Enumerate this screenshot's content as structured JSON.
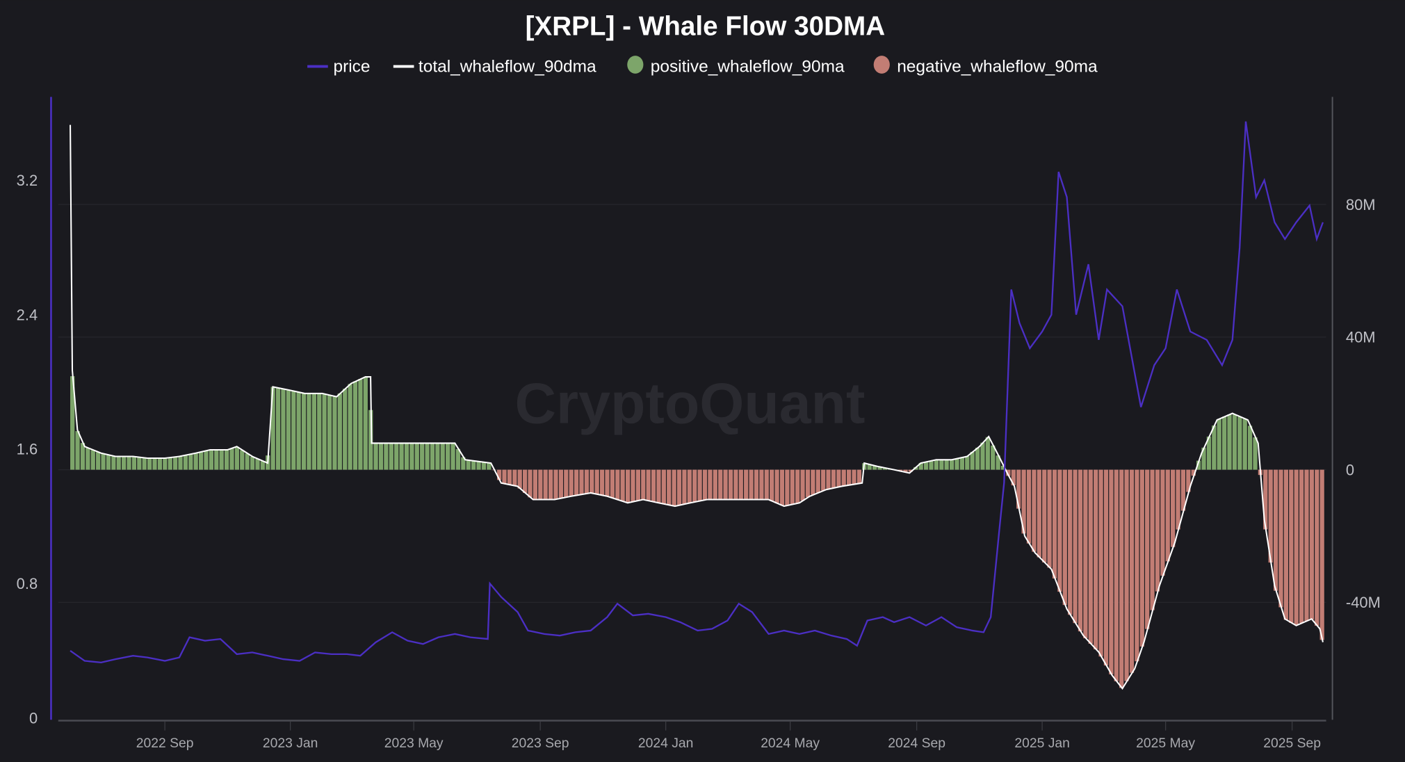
{
  "chart_data": {
    "type": "bar+line",
    "title": "[XRPL] - Whale Flow 30DMA",
    "watermark": "CryptoQuant",
    "legend_position": "top-center",
    "grid": true,
    "colors": {
      "background": "#1a1a1f",
      "price": "#4b2fc4",
      "total": "#ffffff",
      "positive": "#7da56a",
      "negative": "#c27d74"
    },
    "legend": [
      {
        "name": "price",
        "marker": "line",
        "color": "#4b2fc4"
      },
      {
        "name": "total_whaleflow_90dma",
        "marker": "line",
        "color": "#ffffff"
      },
      {
        "name": "positive_whaleflow_90ma",
        "marker": "circle",
        "color": "#7da56a"
      },
      {
        "name": "negative_whaleflow_90ma",
        "marker": "circle",
        "color": "#c27d74"
      }
    ],
    "x_ticks": [
      "2022 Sep",
      "2023 Jan",
      "2023 May",
      "2023 Sep",
      "2024 Jan",
      "2024 May",
      "2024 Sep",
      "2025 Jan",
      "2025 May",
      "2025 Sep"
    ],
    "x_tick_dates": [
      "2022-09-01",
      "2023-01-01",
      "2023-05-01",
      "2023-09-01",
      "2024-01-01",
      "2024-05-01",
      "2024-09-01",
      "2025-01-01",
      "2025-05-01",
      "2025-09-01"
    ],
    "xlim": [
      "2022-06-01",
      "2025-10-01"
    ],
    "y_left": {
      "ticks": [
        "0",
        "0.8",
        "1.6",
        "2.4",
        "3.2"
      ],
      "values": [
        0,
        0.8,
        1.6,
        2.4,
        3.2
      ],
      "ylim": [
        0,
        3.7
      ]
    },
    "y_right": {
      "ticks": [
        "-40M",
        "0",
        "40M",
        "80M"
      ],
      "values": [
        -40,
        0,
        40,
        80
      ],
      "unit": "M",
      "ylim": [
        -75,
        107
      ]
    },
    "price": [
      [
        "2022-06-01",
        0.4
      ],
      [
        "2022-06-15",
        0.34
      ],
      [
        "2022-07-01",
        0.33
      ],
      [
        "2022-07-15",
        0.35
      ],
      [
        "2022-08-01",
        0.37
      ],
      [
        "2022-08-15",
        0.36
      ],
      [
        "2022-09-01",
        0.34
      ],
      [
        "2022-09-15",
        0.36
      ],
      [
        "2022-09-25",
        0.48
      ],
      [
        "2022-10-10",
        0.46
      ],
      [
        "2022-10-25",
        0.47
      ],
      [
        "2022-11-10",
        0.38
      ],
      [
        "2022-11-25",
        0.39
      ],
      [
        "2022-12-10",
        0.37
      ],
      [
        "2022-12-25",
        0.35
      ],
      [
        "2023-01-10",
        0.34
      ],
      [
        "2023-01-25",
        0.39
      ],
      [
        "2023-02-10",
        0.38
      ],
      [
        "2023-02-25",
        0.38
      ],
      [
        "2023-03-10",
        0.37
      ],
      [
        "2023-03-25",
        0.45
      ],
      [
        "2023-04-10",
        0.51
      ],
      [
        "2023-04-25",
        0.46
      ],
      [
        "2023-05-10",
        0.44
      ],
      [
        "2023-05-25",
        0.48
      ],
      [
        "2023-06-10",
        0.5
      ],
      [
        "2023-06-25",
        0.48
      ],
      [
        "2023-07-12",
        0.47
      ],
      [
        "2023-07-14",
        0.8
      ],
      [
        "2023-07-25",
        0.72
      ],
      [
        "2023-08-10",
        0.63
      ],
      [
        "2023-08-20",
        0.52
      ],
      [
        "2023-09-05",
        0.5
      ],
      [
        "2023-09-20",
        0.49
      ],
      [
        "2023-10-05",
        0.51
      ],
      [
        "2023-10-20",
        0.52
      ],
      [
        "2023-11-05",
        0.6
      ],
      [
        "2023-11-15",
        0.68
      ],
      [
        "2023-11-30",
        0.61
      ],
      [
        "2023-12-15",
        0.62
      ],
      [
        "2024-01-01",
        0.6
      ],
      [
        "2024-01-15",
        0.57
      ],
      [
        "2024-02-01",
        0.52
      ],
      [
        "2024-02-15",
        0.53
      ],
      [
        "2024-03-01",
        0.58
      ],
      [
        "2024-03-12",
        0.68
      ],
      [
        "2024-03-25",
        0.63
      ],
      [
        "2024-04-10",
        0.5
      ],
      [
        "2024-04-25",
        0.52
      ],
      [
        "2024-05-10",
        0.5
      ],
      [
        "2024-05-25",
        0.52
      ],
      [
        "2024-06-10",
        0.49
      ],
      [
        "2024-06-25",
        0.47
      ],
      [
        "2024-07-05",
        0.43
      ],
      [
        "2024-07-15",
        0.58
      ],
      [
        "2024-07-30",
        0.6
      ],
      [
        "2024-08-10",
        0.57
      ],
      [
        "2024-08-25",
        0.6
      ],
      [
        "2024-09-10",
        0.55
      ],
      [
        "2024-09-25",
        0.6
      ],
      [
        "2024-10-10",
        0.54
      ],
      [
        "2024-10-25",
        0.52
      ],
      [
        "2024-11-05",
        0.51
      ],
      [
        "2024-11-12",
        0.6
      ],
      [
        "2024-11-20",
        1.1
      ],
      [
        "2024-11-25",
        1.4
      ],
      [
        "2024-12-02",
        2.55
      ],
      [
        "2024-12-10",
        2.35
      ],
      [
        "2024-12-20",
        2.2
      ],
      [
        "2025-01-01",
        2.3
      ],
      [
        "2025-01-10",
        2.4
      ],
      [
        "2025-01-17",
        3.25
      ],
      [
        "2025-01-25",
        3.1
      ],
      [
        "2025-02-03",
        2.4
      ],
      [
        "2025-02-15",
        2.7
      ],
      [
        "2025-02-25",
        2.25
      ],
      [
        "2025-03-05",
        2.55
      ],
      [
        "2025-03-20",
        2.45
      ],
      [
        "2025-04-07",
        1.85
      ],
      [
        "2025-04-20",
        2.1
      ],
      [
        "2025-05-01",
        2.2
      ],
      [
        "2025-05-12",
        2.55
      ],
      [
        "2025-05-25",
        2.3
      ],
      [
        "2025-06-10",
        2.25
      ],
      [
        "2025-06-25",
        2.1
      ],
      [
        "2025-07-05",
        2.25
      ],
      [
        "2025-07-12",
        2.8
      ],
      [
        "2025-07-18",
        3.55
      ],
      [
        "2025-07-28",
        3.1
      ],
      [
        "2025-08-05",
        3.2
      ],
      [
        "2025-08-15",
        2.95
      ],
      [
        "2025-08-25",
        2.85
      ],
      [
        "2025-09-05",
        2.95
      ],
      [
        "2025-09-18",
        3.05
      ],
      [
        "2025-09-25",
        2.85
      ],
      [
        "2025-10-01",
        2.95
      ]
    ],
    "total_whaleflow_90dma_M": [
      [
        "2022-06-01",
        104
      ],
      [
        "2022-06-03",
        30
      ],
      [
        "2022-06-08",
        12
      ],
      [
        "2022-06-15",
        7
      ],
      [
        "2022-07-01",
        5
      ],
      [
        "2022-07-15",
        4
      ],
      [
        "2022-08-01",
        4
      ],
      [
        "2022-08-15",
        3.5
      ],
      [
        "2022-09-01",
        3.5
      ],
      [
        "2022-09-15",
        4
      ],
      [
        "2022-10-01",
        5
      ],
      [
        "2022-10-15",
        6
      ],
      [
        "2022-11-01",
        6
      ],
      [
        "2022-11-10",
        7
      ],
      [
        "2022-11-25",
        4
      ],
      [
        "2022-12-10",
        2
      ],
      [
        "2022-12-15",
        25
      ],
      [
        "2022-12-31",
        24
      ],
      [
        "2023-01-15",
        23
      ],
      [
        "2023-02-01",
        23
      ],
      [
        "2023-02-15",
        22
      ],
      [
        "2023-03-01",
        26
      ],
      [
        "2023-03-15",
        28
      ],
      [
        "2023-03-20",
        28
      ],
      [
        "2023-03-21",
        8
      ],
      [
        "2023-04-10",
        8
      ],
      [
        "2023-05-01",
        8
      ],
      [
        "2023-05-20",
        8
      ],
      [
        "2023-06-10",
        8
      ],
      [
        "2023-06-20",
        3
      ],
      [
        "2023-07-15",
        2
      ],
      [
        "2023-07-25",
        -4
      ],
      [
        "2023-08-10",
        -5
      ],
      [
        "2023-08-25",
        -9
      ],
      [
        "2023-09-15",
        -9
      ],
      [
        "2023-10-01",
        -8
      ],
      [
        "2023-10-20",
        -7
      ],
      [
        "2023-11-05",
        -8
      ],
      [
        "2023-11-25",
        -10
      ],
      [
        "2023-12-10",
        -9
      ],
      [
        "2023-12-25",
        -10
      ],
      [
        "2024-01-10",
        -11
      ],
      [
        "2024-01-25",
        -10
      ],
      [
        "2024-02-10",
        -9
      ],
      [
        "2024-02-25",
        -9
      ],
      [
        "2024-03-10",
        -9
      ],
      [
        "2024-03-25",
        -9
      ],
      [
        "2024-04-10",
        -9
      ],
      [
        "2024-04-25",
        -11
      ],
      [
        "2024-05-10",
        -10
      ],
      [
        "2024-05-20",
        -8
      ],
      [
        "2024-06-05",
        -6
      ],
      [
        "2024-06-20",
        -5
      ],
      [
        "2024-07-10",
        -4
      ],
      [
        "2024-07-12",
        2
      ],
      [
        "2024-07-25",
        1
      ],
      [
        "2024-08-10",
        0
      ],
      [
        "2024-08-25",
        -1
      ],
      [
        "2024-09-05",
        2
      ],
      [
        "2024-09-20",
        3
      ],
      [
        "2024-10-05",
        3
      ],
      [
        "2024-10-20",
        4
      ],
      [
        "2024-11-01",
        7
      ],
      [
        "2024-11-10",
        10
      ],
      [
        "2024-11-20",
        4
      ],
      [
        "2024-11-28",
        -1
      ],
      [
        "2024-12-05",
        -5
      ],
      [
        "2024-12-15",
        -20
      ],
      [
        "2024-12-25",
        -25
      ],
      [
        "2025-01-10",
        -30
      ],
      [
        "2025-01-25",
        -42
      ],
      [
        "2025-02-10",
        -50
      ],
      [
        "2025-02-25",
        -55
      ],
      [
        "2025-03-10",
        -62
      ],
      [
        "2025-03-20",
        -66
      ],
      [
        "2025-04-01",
        -60
      ],
      [
        "2025-04-10",
        -52
      ],
      [
        "2025-04-25",
        -35
      ],
      [
        "2025-05-10",
        -22
      ],
      [
        "2025-05-25",
        -5
      ],
      [
        "2025-06-05",
        5
      ],
      [
        "2025-06-20",
        15
      ],
      [
        "2025-07-05",
        17
      ],
      [
        "2025-07-20",
        15
      ],
      [
        "2025-07-30",
        8
      ],
      [
        "2025-08-05",
        -15
      ],
      [
        "2025-08-15",
        -35
      ],
      [
        "2025-08-25",
        -45
      ],
      [
        "2025-09-05",
        -47
      ],
      [
        "2025-09-20",
        -45
      ],
      [
        "2025-09-28",
        -48
      ],
      [
        "2025-10-01",
        -52
      ]
    ]
  }
}
